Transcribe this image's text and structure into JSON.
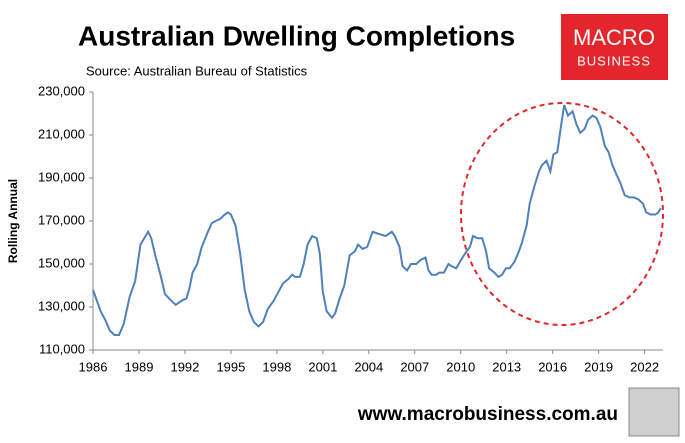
{
  "chart_data": {
    "type": "line",
    "title": "Australian Dwelling Completions",
    "subtitle": "Source: Australian Bureau of Statistics",
    "y_label": "Rolling Annual",
    "logo": [
      "MACRO",
      "BUSINESS"
    ],
    "website": "www.macrobusiness.com.au",
    "xlim": [
      1986,
      2023.2
    ],
    "xticks": [
      1986,
      1989,
      1992,
      1995,
      1998,
      2001,
      2004,
      2007,
      2010,
      2013,
      2016,
      2019,
      2022
    ],
    "ylim": [
      110000,
      230000
    ],
    "yticks": [
      {
        "value": 110000,
        "label": "110,000"
      },
      {
        "value": 130000,
        "label": "130,000"
      },
      {
        "value": 150000,
        "label": "150,000"
      },
      {
        "value": 170000,
        "label": "170,000"
      },
      {
        "value": 190000,
        "label": "190,000"
      },
      {
        "value": 210000,
        "label": "210,000"
      },
      {
        "value": 230000,
        "label": "230,000"
      }
    ],
    "grid": false,
    "series": [
      {
        "name": "Rolling Annual",
        "color": "#4f81bd",
        "x": [
          1986.0,
          1986.5,
          1986.8,
          1987.1,
          1987.4,
          1987.7,
          1988.0,
          1988.4,
          1988.75,
          1989.1,
          1989.6,
          1989.8,
          1990.1,
          1990.4,
          1990.7,
          1991.1,
          1991.4,
          1991.8,
          1992.1,
          1992.3,
          1992.5,
          1992.8,
          1993.1,
          1993.5,
          1993.75,
          1994.0,
          1994.3,
          1994.6,
          1994.8,
          1995.0,
          1995.3,
          1995.6,
          1995.9,
          1996.2,
          1996.5,
          1996.8,
          1997.1,
          1997.4,
          1997.8,
          1998.1,
          1998.4,
          1998.75,
          1999.0,
          1999.2,
          1999.5,
          1999.75,
          2000.0,
          2000.3,
          2000.6,
          2000.8,
          2001.0,
          2001.25,
          2001.6,
          2001.8,
          2002.1,
          2002.4,
          2002.75,
          2003.1,
          2003.3,
          2003.6,
          2003.9,
          2004.25,
          2004.65,
          2005.1,
          2005.5,
          2005.7,
          2006.0,
          2006.2,
          2006.5,
          2006.75,
          2007.1,
          2007.4,
          2007.7,
          2007.9,
          2008.1,
          2008.4,
          2008.6,
          2008.9,
          2009.2,
          2009.4,
          2009.7,
          2009.95,
          2010.2,
          2010.6,
          2010.8,
          2011.1,
          2011.4,
          2011.65,
          2011.85,
          2012.2,
          2012.45,
          2012.7,
          2012.95,
          2013.2,
          2013.5,
          2013.75,
          2014.0,
          2014.3,
          2014.5,
          2014.8,
          2015.1,
          2015.3,
          2015.6,
          2015.85,
          2016.05,
          2016.3,
          2016.5,
          2016.75,
          2017.0,
          2017.3,
          2017.55,
          2017.8,
          2018.1,
          2018.3,
          2018.6,
          2018.85,
          2019.1,
          2019.4,
          2019.65,
          2019.9,
          2020.2,
          2020.4,
          2020.7,
          2021.0,
          2021.3,
          2021.6,
          2021.9,
          2022.1,
          2022.4,
          2022.7,
          2022.9,
          2023.05
        ],
        "values": [
          138000,
          128000,
          124000,
          119000,
          117000,
          117000,
          122000,
          135000,
          142000,
          159000,
          165000,
          162000,
          153000,
          145000,
          136000,
          133000,
          131000,
          133000,
          134000,
          139000,
          146000,
          150000,
          158000,
          165000,
          169000,
          170000,
          171000,
          173000,
          174000,
          173000,
          168000,
          155000,
          138000,
          128000,
          123000,
          121000,
          123000,
          129000,
          133000,
          137000,
          141000,
          143000,
          145000,
          144000,
          144000,
          150000,
          159000,
          163000,
          162000,
          155000,
          137000,
          128000,
          125000,
          127000,
          134000,
          140000,
          154000,
          156000,
          159000,
          157000,
          158000,
          165000,
          164000,
          163000,
          165000,
          163000,
          158000,
          149000,
          147000,
          150000,
          150000,
          152000,
          153000,
          147000,
          145000,
          145000,
          146000,
          146000,
          150000,
          149000,
          148000,
          151000,
          154000,
          158000,
          163000,
          162000,
          162000,
          156000,
          148000,
          146000,
          144000,
          145000,
          148000,
          148000,
          151000,
          155000,
          160000,
          168000,
          178000,
          186000,
          193000,
          196000,
          198000,
          193000,
          201000,
          202000,
          212000,
          224000,
          219000,
          221000,
          215000,
          211000,
          213000,
          217000,
          219000,
          218000,
          214000,
          205000,
          202000,
          196000,
          191000,
          188000,
          182000,
          181000,
          181000,
          180000,
          178000,
          174000,
          173000,
          173000,
          174000,
          176000
        ]
      }
    ]
  }
}
